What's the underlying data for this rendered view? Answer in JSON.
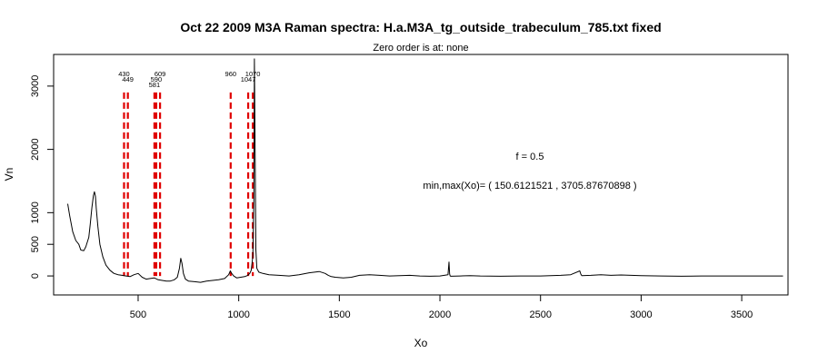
{
  "chart_data": {
    "type": "line",
    "title": "Oct 22 2009 M3A Raman spectra: H.a.M3A_tg_outside_trabeculum_785.txt fixed",
    "subtitle": "Zero order is at:  none",
    "xlabel": "Xo",
    "ylabel": "Vn",
    "xlim": [
      80,
      3730
    ],
    "ylim": [
      -300,
      3500
    ],
    "x_ticks": [
      500,
      1000,
      1500,
      2000,
      2500,
      3000,
      3500
    ],
    "y_ticks": [
      0,
      500,
      1000,
      2000,
      3000
    ],
    "grid": false,
    "annotations": [
      {
        "text": "f =  0.5"
      },
      {
        "text": "min,max(Xo)= ( 150.6121521  , 3705.87670898 )"
      }
    ],
    "peak_markers": {
      "color": "#e00000",
      "style": "dashed",
      "top": 2900,
      "positions": [
        430,
        449,
        581,
        590,
        609,
        960,
        1047,
        1070
      ],
      "labels": [
        "430",
        "449",
        "581",
        "590",
        "609",
        "960",
        "1047",
        "1070"
      ]
    },
    "series": [
      {
        "color": "#000000",
        "x": [
          150,
          160,
          175,
          190,
          205,
          215,
          230,
          240,
          255,
          262,
          270,
          278,
          283,
          288,
          292,
          300,
          310,
          325,
          340,
          360,
          380,
          400,
          420,
          440,
          460,
          480,
          500,
          520,
          540,
          560,
          580,
          600,
          620,
          640,
          660,
          680,
          695,
          705,
          712,
          718,
          725,
          735,
          750,
          780,
          810,
          840,
          870,
          900,
          930,
          950,
          958,
          965,
          975,
          990,
          1010,
          1030,
          1045,
          1055,
          1062,
          1066,
          1070,
          1075,
          1078,
          1082,
          1085,
          1090,
          1100,
          1120,
          1150,
          1200,
          1250,
          1300,
          1350,
          1400,
          1430,
          1445,
          1460,
          1480,
          1520,
          1560,
          1600,
          1650,
          1700,
          1750,
          1800,
          1850,
          1900,
          1950,
          2000,
          2040,
          2045,
          2048,
          2051,
          2055,
          2100,
          2150,
          2200,
          2300,
          2400,
          2500,
          2600,
          2650,
          2695,
          2700,
          2705,
          2750,
          2800,
          2850,
          2900,
          2950,
          3000,
          3100,
          3200,
          3300,
          3400,
          3500,
          3600,
          3705
        ],
        "y": [
          1140,
          950,
          700,
          560,
          500,
          410,
          400,
          460,
          610,
          820,
          1080,
          1270,
          1330,
          1260,
          1070,
          780,
          500,
          300,
          170,
          90,
          40,
          20,
          10,
          0,
          -10,
          20,
          40,
          -20,
          -50,
          -40,
          -30,
          -60,
          -70,
          -80,
          -80,
          -60,
          -20,
          120,
          280,
          200,
          40,
          -50,
          -80,
          -90,
          -100,
          -80,
          -70,
          -60,
          -40,
          20,
          80,
          40,
          0,
          -30,
          -20,
          -10,
          10,
          40,
          90,
          200,
          320,
          1200,
          3430,
          1800,
          420,
          120,
          60,
          40,
          20,
          10,
          0,
          20,
          50,
          70,
          40,
          10,
          -10,
          -20,
          -30,
          -20,
          10,
          20,
          10,
          0,
          5,
          10,
          0,
          -5,
          0,
          20,
          220,
          30,
          0,
          -5,
          0,
          5,
          0,
          -5,
          0,
          0,
          10,
          20,
          80,
          30,
          5,
          10,
          20,
          10,
          15,
          10,
          5,
          0,
          -5,
          0,
          0,
          0,
          0,
          0
        ]
      }
    ]
  }
}
